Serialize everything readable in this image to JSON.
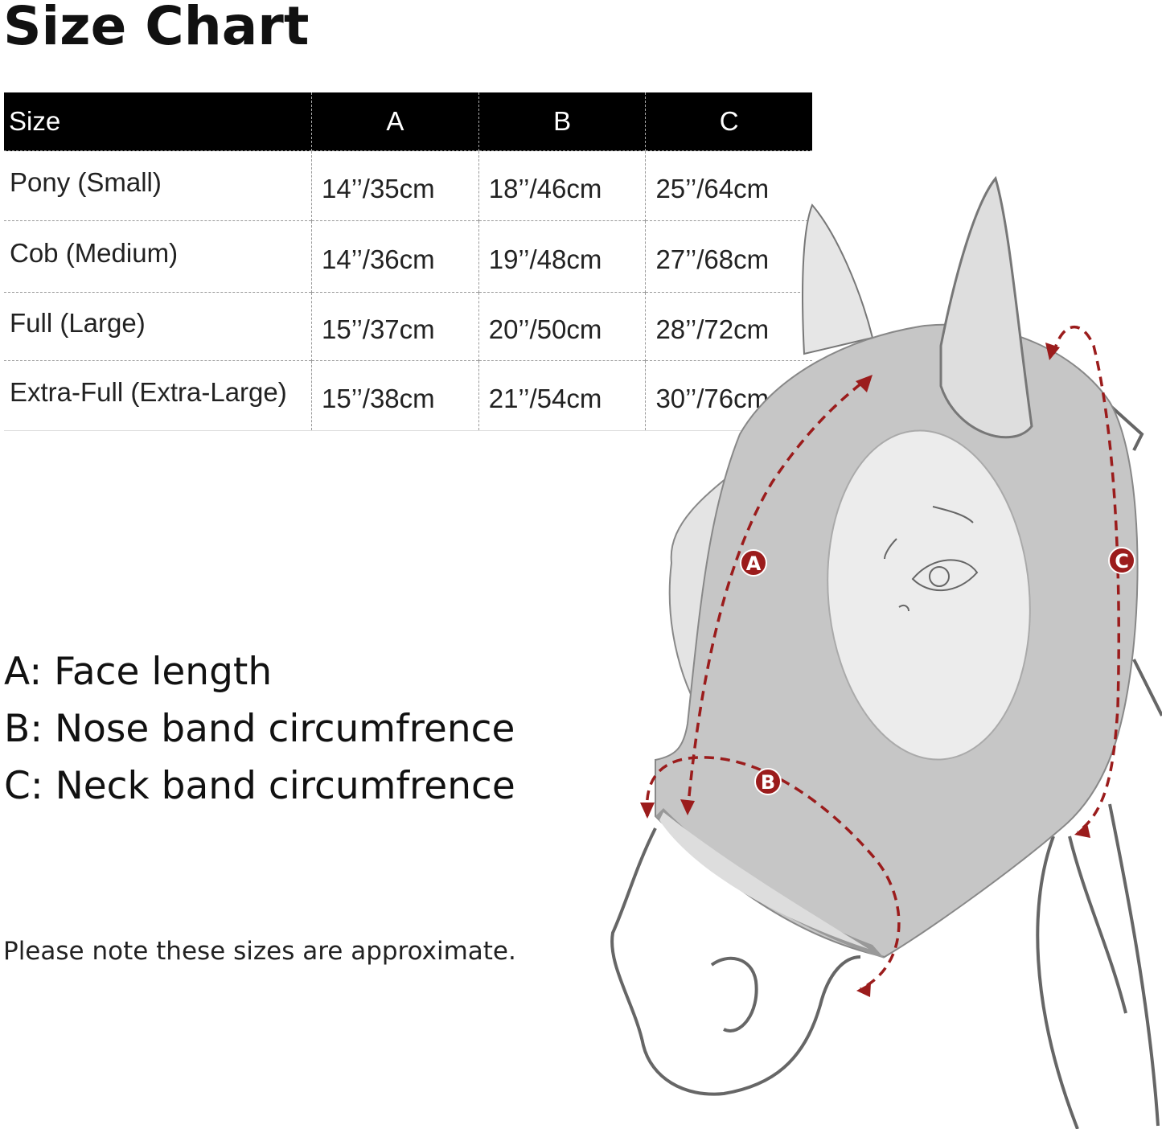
{
  "title": "Size Chart",
  "table": {
    "headers": [
      "Size",
      "A",
      "B",
      "C"
    ],
    "rows": [
      [
        "Pony (Small)",
        "14’’/35cm",
        "18’’/46cm",
        "25’’/64cm"
      ],
      [
        "Cob (Medium)",
        "14’’/36cm",
        "19’’/48cm",
        "27’’/68cm"
      ],
      [
        "Full (Large)",
        "15’’/37cm",
        "20’’/50cm",
        "28’’/72cm"
      ],
      [
        "Extra-Full (Extra-Large)",
        "15’’/38cm",
        "21’’/54cm",
        "30’’/76cm"
      ]
    ]
  },
  "legend": [
    "A: Face length",
    "B: Nose band circumfrence",
    "C: Neck band circumfrence"
  ],
  "note": "Please note these sizes are approximate.",
  "diagram": {
    "markers": [
      "A",
      "B",
      "C"
    ],
    "colors": {
      "measure": "#9b1c1c",
      "mask": "#c6c6c6",
      "eye_window": "#ececec",
      "outline": "#666666"
    }
  }
}
